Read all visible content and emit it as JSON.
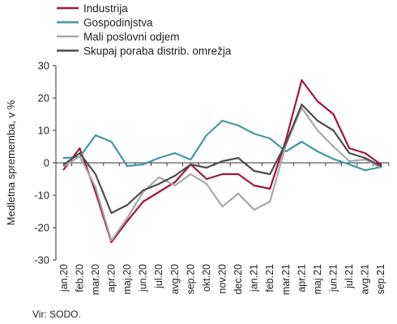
{
  "chart_data": {
    "type": "line",
    "title": "",
    "xlabel": "",
    "ylabel": "Medletna sprememba, v %",
    "ylim": [
      -30,
      30
    ],
    "yticks": [
      -30,
      -20,
      -10,
      0,
      10,
      20,
      30
    ],
    "grid": false,
    "legend_position": "top-left",
    "source": "Vir: SODO.",
    "x": [
      "jan.20",
      "feb.20",
      "mar.20",
      "apr.20",
      "maj.20",
      "jun.20",
      "jul.20",
      "avg.20",
      "sep.20",
      "okt.20",
      "nov.20",
      "dec.20",
      "jan.21",
      "feb.21",
      "mar.21",
      "apr.21",
      "maj.21",
      "jun.21",
      "jul.21",
      "avg.21",
      "sep.21"
    ],
    "x_labels_shown": [
      "jan.20",
      "feb.20",
      "mar.20",
      "apr.20",
      "maj.20",
      "jun.20",
      "jul.20",
      "avg.20",
      "sep.20",
      "okt.20",
      "nov.20",
      "dec.20",
      "jan.21",
      "feb.21",
      "mar.21",
      "apr.21",
      "maj 21",
      "jun.21",
      "jul.21",
      "avg.21",
      "sep.21"
    ],
    "series": [
      {
        "name": "Industrija",
        "color": "#a3143c",
        "values": [
          -2,
          4.5,
          -9,
          -24.5,
          -18,
          -12,
          -9,
          -6,
          -0.5,
          -5,
          -3.5,
          -3.5,
          -7,
          -8,
          7,
          25.5,
          19,
          15,
          4.5,
          3,
          -0.5
        ]
      },
      {
        "name": "Gospodinjstva",
        "color": "#3f9a9c",
        "values": [
          1.5,
          1.8,
          8.5,
          6.5,
          -1,
          -0.5,
          1.5,
          3,
          1,
          8.5,
          13,
          11.5,
          9,
          7.5,
          3.5,
          6.5,
          3.5,
          1.2,
          -0.5,
          -2.3,
          -1.3
        ]
      },
      {
        "name": "Mali poslovni odjem",
        "color": "#a8a8a8",
        "values": [
          -1,
          2,
          -7.5,
          -24,
          -17,
          -9,
          -4.5,
          -7,
          -3.5,
          -6.5,
          -13.5,
          -9.5,
          -14.5,
          -12,
          5.5,
          17,
          10,
          5,
          0.5,
          1,
          -1.5
        ]
      },
      {
        "name": "Skupaj poraba distrib. omrežja",
        "color": "#4d4d4d",
        "values": [
          -0.5,
          3,
          -3.5,
          -15.5,
          -13,
          -8.5,
          -6.5,
          -4,
          -0.5,
          -1.5,
          0.5,
          1.5,
          -2.5,
          -3.5,
          6,
          18,
          13,
          10,
          3,
          1.5,
          -1
        ]
      }
    ]
  }
}
